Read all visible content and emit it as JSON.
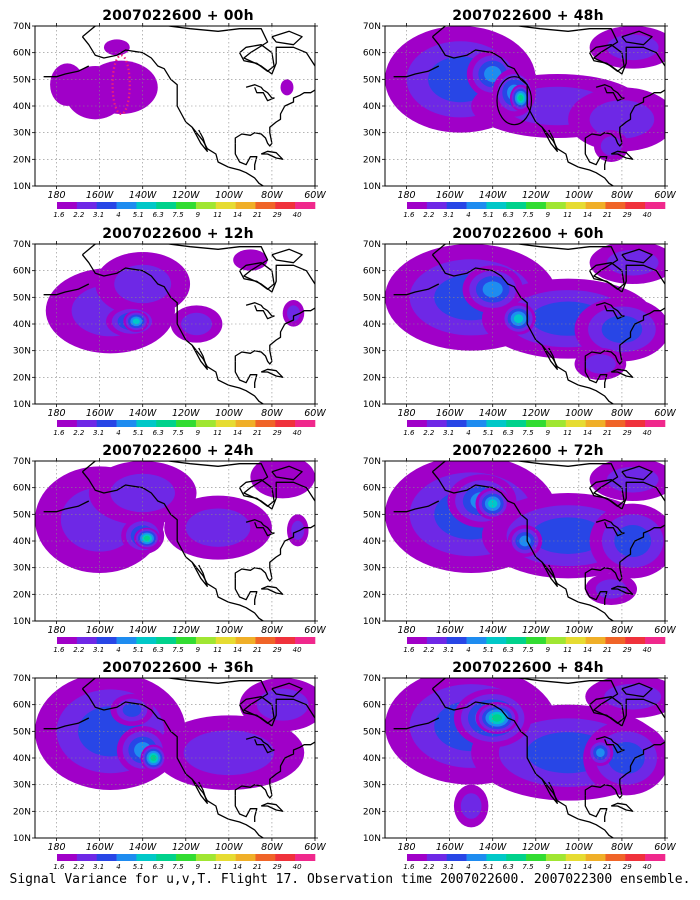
{
  "panels": [
    {
      "title": "2007022600 + 00h",
      "blobs": [
        {
          "lon": -150,
          "lat": 47,
          "rx": 17,
          "ry": 10,
          "v": 1.0
        },
        {
          "lon": -162,
          "lat": 45,
          "rx": 14,
          "ry": 10,
          "v": 1.0
        },
        {
          "lon": -175,
          "lat": 48,
          "rx": 8,
          "ry": 8,
          "v": 0.2
        },
        {
          "lon": -150,
          "lat": 47,
          "rx": 9,
          "ry": 6,
          "v": 0.4
        },
        {
          "lon": -152,
          "lat": 62,
          "rx": 6,
          "ry": 3,
          "v": 0.2
        },
        {
          "lon": -73,
          "lat": 47,
          "rx": 3,
          "ry": 3,
          "v": 0.2
        }
      ],
      "ring": {
        "lon": -150,
        "lat": 48,
        "rx": 4,
        "ry": 11,
        "color": "#ee2277"
      }
    },
    {
      "title": "2007022600 + 12h",
      "blobs": [
        {
          "lon": -155,
          "lat": 45,
          "rx": 30,
          "ry": 16,
          "v": 1.8
        },
        {
          "lon": -140,
          "lat": 55,
          "rx": 22,
          "ry": 12,
          "v": 1.5
        },
        {
          "lon": -115,
          "lat": 40,
          "rx": 12,
          "ry": 7,
          "v": 1.2
        },
        {
          "lon": -145,
          "lat": 41,
          "rx": 12,
          "ry": 6,
          "v": 3.2
        },
        {
          "lon": -143,
          "lat": 41,
          "rx": 6,
          "ry": 4,
          "v": 4.5
        },
        {
          "lon": -90,
          "lat": 64,
          "rx": 8,
          "ry": 4,
          "v": 1.0
        },
        {
          "lon": -70,
          "lat": 44,
          "rx": 5,
          "ry": 5,
          "v": 1.2
        }
      ]
    },
    {
      "title": "2007022600 + 24h",
      "blobs": [
        {
          "lon": -160,
          "lat": 48,
          "rx": 30,
          "ry": 20,
          "v": 2.0
        },
        {
          "lon": -140,
          "lat": 58,
          "rx": 25,
          "ry": 12,
          "v": 2.0
        },
        {
          "lon": -105,
          "lat": 45,
          "rx": 25,
          "ry": 12,
          "v": 1.4
        },
        {
          "lon": -140,
          "lat": 42,
          "rx": 10,
          "ry": 7,
          "v": 3.5
        },
        {
          "lon": -138,
          "lat": 41,
          "rx": 6,
          "ry": 4,
          "v": 5.5
        },
        {
          "lon": -75,
          "lat": 64,
          "rx": 15,
          "ry": 8,
          "v": 1.0
        },
        {
          "lon": -68,
          "lat": 44,
          "rx": 5,
          "ry": 6,
          "v": 1.4
        }
      ]
    },
    {
      "title": "2007022600 + 36h",
      "blobs": [
        {
          "lon": -155,
          "lat": 50,
          "rx": 35,
          "ry": 22,
          "v": 2.3
        },
        {
          "lon": -100,
          "lat": 42,
          "rx": 35,
          "ry": 14,
          "v": 1.8
        },
        {
          "lon": -75,
          "lat": 60,
          "rx": 20,
          "ry": 10,
          "v": 1.4
        },
        {
          "lon": -140,
          "lat": 43,
          "rx": 12,
          "ry": 9,
          "v": 3.5
        },
        {
          "lon": -135,
          "lat": 40,
          "rx": 6,
          "ry": 5,
          "v": 5.5
        },
        {
          "lon": -145,
          "lat": 58,
          "rx": 10,
          "ry": 6,
          "v": 2.8
        }
      ]
    },
    {
      "title": "2007022600 + 48h",
      "blobs": [
        {
          "lon": -155,
          "lat": 50,
          "rx": 35,
          "ry": 20,
          "v": 2.4
        },
        {
          "lon": -110,
          "lat": 40,
          "rx": 40,
          "ry": 12,
          "v": 2.0
        },
        {
          "lon": -80,
          "lat": 35,
          "rx": 25,
          "ry": 12,
          "v": 2.0
        },
        {
          "lon": -75,
          "lat": 62,
          "rx": 20,
          "ry": 8,
          "v": 1.4
        },
        {
          "lon": -140,
          "lat": 52,
          "rx": 12,
          "ry": 9,
          "v": 3.2
        },
        {
          "lon": -130,
          "lat": 45,
          "rx": 10,
          "ry": 9,
          "v": 4.0
        },
        {
          "lon": -127,
          "lat": 43,
          "rx": 5,
          "ry": 5,
          "v": 5.2
        },
        {
          "lon": -85,
          "lat": 25,
          "rx": 8,
          "ry": 6,
          "v": 1.4
        }
      ],
      "ring": {
        "lon": -130,
        "lat": 42,
        "rx": 8,
        "ry": 9,
        "color": "#000000"
      }
    },
    {
      "title": "2007022600 + 60h",
      "blobs": [
        {
          "lon": -150,
          "lat": 50,
          "rx": 40,
          "ry": 20,
          "v": 2.4
        },
        {
          "lon": -105,
          "lat": 42,
          "rx": 40,
          "ry": 15,
          "v": 2.2
        },
        {
          "lon": -80,
          "lat": 38,
          "rx": 22,
          "ry": 12,
          "v": 2.2
        },
        {
          "lon": -75,
          "lat": 63,
          "rx": 20,
          "ry": 8,
          "v": 1.4
        },
        {
          "lon": -140,
          "lat": 53,
          "rx": 14,
          "ry": 9,
          "v": 3.5
        },
        {
          "lon": -128,
          "lat": 42,
          "rx": 8,
          "ry": 6,
          "v": 4.2
        },
        {
          "lon": -90,
          "lat": 25,
          "rx": 12,
          "ry": 6,
          "v": 1.8
        }
      ]
    },
    {
      "title": "2007022600 + 72h",
      "blobs": [
        {
          "lon": -150,
          "lat": 50,
          "rx": 40,
          "ry": 22,
          "v": 2.6
        },
        {
          "lon": -105,
          "lat": 42,
          "rx": 40,
          "ry": 16,
          "v": 2.4
        },
        {
          "lon": -75,
          "lat": 40,
          "rx": 20,
          "ry": 14,
          "v": 2.4
        },
        {
          "lon": -75,
          "lat": 63,
          "rx": 20,
          "ry": 8,
          "v": 1.6
        },
        {
          "lon": -145,
          "lat": 55,
          "rx": 16,
          "ry": 10,
          "v": 4.0
        },
        {
          "lon": -140,
          "lat": 54,
          "rx": 8,
          "ry": 6,
          "v": 5.0
        },
        {
          "lon": -125,
          "lat": 40,
          "rx": 8,
          "ry": 6,
          "v": 3.6
        },
        {
          "lon": -85,
          "lat": 22,
          "rx": 12,
          "ry": 6,
          "v": 2.0
        }
      ]
    },
    {
      "title": "2007022600 + 84h",
      "blobs": [
        {
          "lon": -150,
          "lat": 52,
          "rx": 40,
          "ry": 22,
          "v": 2.7
        },
        {
          "lon": -105,
          "lat": 42,
          "rx": 45,
          "ry": 18,
          "v": 2.6
        },
        {
          "lon": -78,
          "lat": 40,
          "rx": 20,
          "ry": 14,
          "v": 2.6
        },
        {
          "lon": -75,
          "lat": 63,
          "rx": 22,
          "ry": 8,
          "v": 1.8
        },
        {
          "lon": -140,
          "lat": 55,
          "rx": 18,
          "ry": 11,
          "v": 4.5
        },
        {
          "lon": -138,
          "lat": 55,
          "rx": 10,
          "ry": 6,
          "v": 6.0
        },
        {
          "lon": -90,
          "lat": 42,
          "rx": 6,
          "ry": 5,
          "v": 4.0
        },
        {
          "lon": -150,
          "lat": 22,
          "rx": 8,
          "ry": 8,
          "v": 1.6
        }
      ]
    }
  ],
  "axes": {
    "lat_labels": [
      "10N",
      "20N",
      "30N",
      "40N",
      "50N",
      "60N",
      "70N"
    ],
    "lat_values": [
      10,
      20,
      30,
      40,
      50,
      60,
      70
    ],
    "lon_labels": [
      "180",
      "160W",
      "140W",
      "120W",
      "100W",
      "80W",
      "60W"
    ],
    "lon_values": [
      -180,
      -160,
      -140,
      -120,
      -100,
      -80,
      -60
    ],
    "lon_range": [
      -190,
      -60
    ],
    "lat_range": [
      10,
      70
    ]
  },
  "colorbar": {
    "labels": [
      "1.6",
      "2.2",
      "3.1",
      "4",
      "5.1",
      "6.3",
      "7.5",
      "9",
      "11",
      "14",
      "21",
      "29",
      "40"
    ],
    "colors": [
      "#a000c8",
      "#6e28e6",
      "#2846e6",
      "#1e8cf0",
      "#00c8c8",
      "#00d28c",
      "#32dc32",
      "#a0e632",
      "#e6dc32",
      "#f0af28",
      "#f06428",
      "#f0323c",
      "#f0288c",
      "#ffffff"
    ]
  },
  "caption": "Signal Variance for u,v,T. Flight 17. Observation time 2007022600. 2007022300 ensemble."
}
